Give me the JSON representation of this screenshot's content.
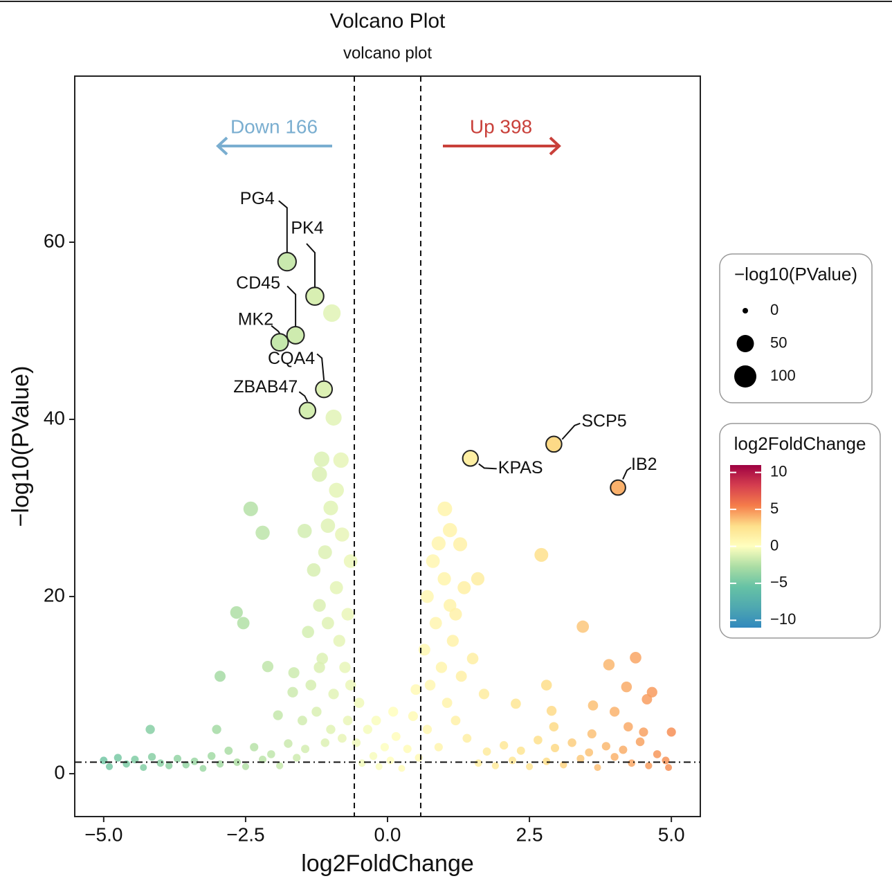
{
  "chart_data": {
    "type": "scatter",
    "title": "Volcano Plot",
    "subtitle": "volcano plot",
    "x_label": "log2FoldChange",
    "y_label": "−log10(PValue)",
    "xlim": [
      -5.51,
      5.51
    ],
    "ylim": [
      -4.84,
      78.75
    ],
    "xticks": [
      {
        "value": -5,
        "label": "−5.0"
      },
      {
        "value": -2.5,
        "label": "−2.5"
      },
      {
        "value": 0,
        "label": "0.0"
      },
      2.5,
      {
        "value": 5,
        "label": "5.0"
      }
    ],
    "yticks": [
      0,
      20,
      40,
      60
    ],
    "thresholds": {
      "x": [
        -0.585,
        0.585
      ],
      "y": 1.3
    },
    "x": [
      -5.0,
      -4.9,
      -4.75,
      -4.6,
      -4.45,
      -4.3,
      -4.15,
      -4.0,
      -3.85,
      -3.7,
      -3.55,
      -3.4,
      -3.25,
      -3.1,
      -2.95,
      -2.8,
      -2.65,
      -2.5,
      -2.35,
      -2.2,
      -2.05,
      -1.9,
      -1.75,
      -1.6,
      -1.45,
      1.6,
      1.75,
      1.9,
      2.05,
      2.2,
      2.35,
      2.5,
      2.65,
      2.8,
      2.95,
      3.1,
      3.25,
      3.4,
      3.55,
      3.7,
      3.85,
      4.0,
      4.15,
      4.3,
      4.45,
      4.6,
      4.75,
      4.9,
      4.95,
      -0.55,
      -0.45,
      -0.35,
      -0.25,
      -0.15,
      -0.05,
      0.05,
      0.15,
      0.25,
      0.35,
      0.45,
      0.55,
      -0.5,
      0.5,
      0.1,
      -0.2,
      -0.65,
      -0.7,
      -0.75,
      -0.8,
      -0.85,
      -0.9,
      -0.95,
      -1.0,
      -1.05,
      -1.1,
      -1.15,
      -1.2,
      -1.25,
      -1.3,
      -1.35,
      -1.4,
      -0.7,
      -0.8,
      -1.0,
      -1.1,
      -0.65,
      -0.9,
      -1.05,
      -1.2,
      -1.5,
      0.65,
      0.7,
      0.75,
      0.8,
      0.85,
      0.9,
      0.95,
      1.0,
      1.05,
      1.1,
      1.15,
      1.2,
      1.3,
      1.4,
      1.5,
      1.7,
      0.7,
      0.9,
      1.1,
      1.35,
      -0.98,
      -0.95,
      -1.16,
      -0.82,
      -1.2,
      -2.41,
      -2.2,
      -1.46,
      -2.66,
      -2.54,
      -2.95,
      -2.11,
      -1.65,
      -1.67,
      -1.93,
      -3.01,
      -4.18,
      1.01,
      1.28,
      1.59,
      1.2,
      2.71,
      3.44,
      3.9,
      4.37,
      4.21,
      4.66,
      4.57,
      2.8,
      2.26,
      2.89,
      3.62,
      4,
      5,
      4.51,
      4.24,
      3.6,
      2.93
    ],
    "y": [
      1.5,
      0.8,
      1.8,
      1.1,
      1.6,
      0.7,
      1.9,
      1.2,
      0.9,
      1.7,
      1.0,
      1.4,
      0.6,
      2.0,
      1.1,
      2.6,
      1.3,
      0.8,
      3.0,
      1.6,
      2.2,
      0.9,
      3.4,
      1.8,
      2.8,
      1.2,
      2.5,
      0.9,
      3.2,
      1.5,
      2.6,
      0.8,
      3.8,
      1.4,
      2.9,
      1.0,
      3.5,
      1.7,
      2.4,
      0.7,
      3.1,
      1.9,
      2.7,
      1.2,
      3.6,
      0.9,
      2.2,
      1.5,
      0.7,
      3.5,
      1.2,
      5.0,
      2.0,
      0.8,
      3.0,
      1.5,
      4.2,
      0.6,
      2.8,
      6.5,
      1.8,
      8.0,
      9.5,
      7.0,
      6.0,
      24,
      18,
      12,
      27,
      15,
      21,
      9,
      30,
      17,
      25,
      13,
      19,
      7,
      23,
      10,
      16,
      6,
      4,
      5,
      3.5,
      10,
      32,
      28,
      12,
      6,
      14,
      20,
      10,
      24,
      17,
      26,
      12,
      22,
      8,
      19,
      15,
      6,
      11,
      4,
      13,
      9,
      5,
      3,
      27.5,
      21,
      52.0,
      40.2,
      35.5,
      35.4,
      33.8,
      29.9,
      27.2,
      27.4,
      18.2,
      17.0,
      11.0,
      12.1,
      11.4,
      9.2,
      6.6,
      5.0,
      5.0,
      29.9,
      25.9,
      22.0,
      18.0,
      24.7,
      16.6,
      12.3,
      13.1,
      9.8,
      9.2,
      8.4,
      10.0,
      7.9,
      7.1,
      7.7,
      7.0,
      4.7,
      4.7,
      5.3,
      4.5,
      5.3
    ],
    "genes": [
      {
        "name": "PG4",
        "x": -1.77,
        "y": 57.8
      },
      {
        "name": "PK4",
        "x": -1.28,
        "y": 53.9
      },
      {
        "name": "CD45",
        "x": -1.62,
        "y": 49.5
      },
      {
        "name": "MK2",
        "x": -1.9,
        "y": 48.7
      },
      {
        "name": "CQA4",
        "x": -1.12,
        "y": 43.4
      },
      {
        "name": "ZBAB47",
        "x": -1.41,
        "y": 41.0
      },
      {
        "name": "SCP5",
        "x": 2.93,
        "y": 37.2
      },
      {
        "name": "KPAS",
        "x": 1.46,
        "y": 35.6
      },
      {
        "name": "IB2",
        "x": 4.06,
        "y": 32.3
      }
    ],
    "annotations": [
      {
        "text": "Down 166",
        "color": "#7aaed0"
      },
      {
        "text": "Up 398",
        "color": "#c9403a"
      }
    ],
    "size_legend": {
      "title": "−log10(PValue)",
      "values": [
        0,
        50,
        100
      ]
    },
    "colorbar": {
      "title": "log2FoldChange",
      "lim": [
        -11,
        11
      ],
      "colors": [
        "#3288bd",
        "#4fa8b0",
        "#66c2a5",
        "#abdda4",
        "#ffffbf",
        "#fee08b",
        "#f57d4a",
        "#d53e4f",
        "#9e0142"
      ],
      "ticks": [
        10,
        5,
        0,
        {
          "value": -5,
          "label": "−5"
        },
        {
          "value": -10,
          "label": "−10"
        }
      ]
    }
  }
}
